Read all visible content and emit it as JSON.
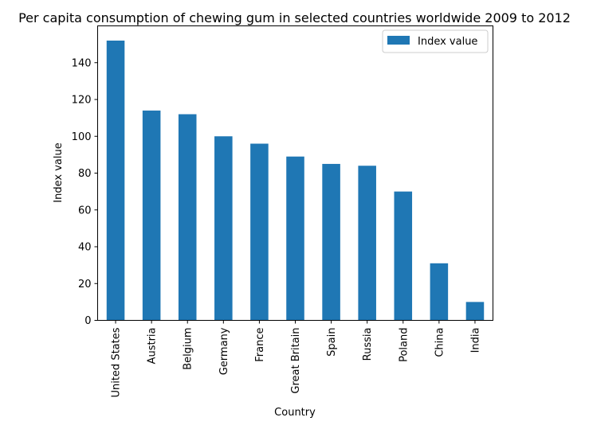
{
  "chart_data": {
    "type": "bar",
    "title": "Per capita consumption of chewing gum in selected countries worldwide 2009 to 2012",
    "xlabel": "Country",
    "ylabel": "Index value",
    "categories": [
      "United States",
      "Austria",
      "Belgium",
      "Germany",
      "France",
      "Great Britain",
      "Spain",
      "Russia",
      "Poland",
      "China",
      "India"
    ],
    "series": [
      {
        "name": "Index value",
        "values": [
          152,
          114,
          112,
          100,
          96,
          89,
          85,
          84,
          70,
          31,
          10
        ],
        "color": "#1f77b4"
      }
    ],
    "ylim": [
      0,
      160
    ],
    "yticks": [
      0,
      20,
      40,
      60,
      80,
      100,
      120,
      140
    ],
    "grid": false,
    "legend_position": "top-right"
  }
}
